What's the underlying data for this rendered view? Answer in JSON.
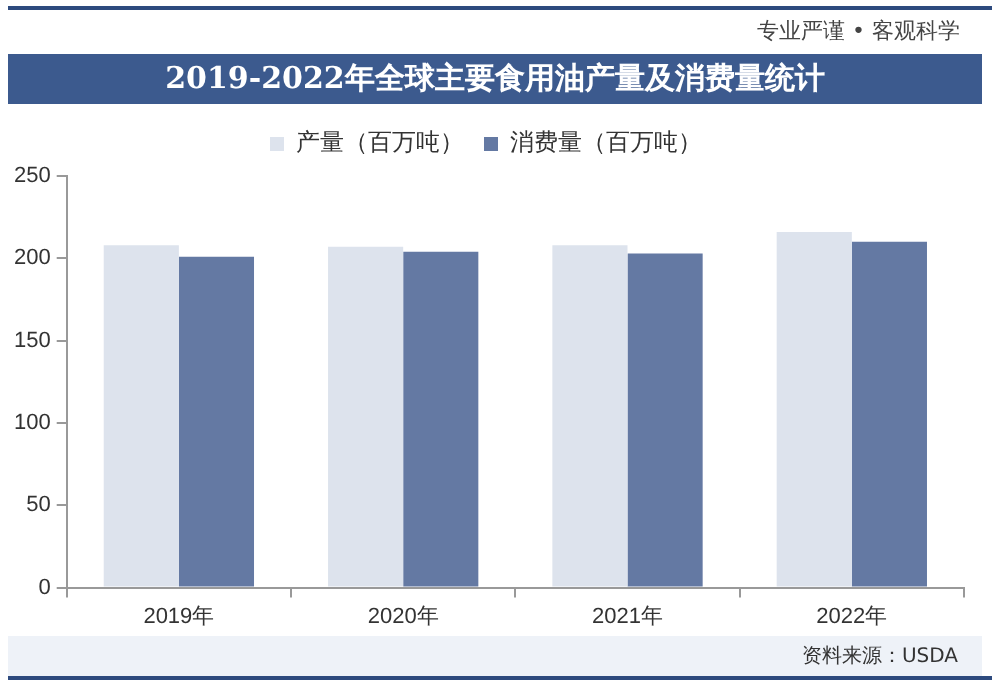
{
  "chart_data": {
    "type": "bar",
    "title": "2019-2022年全球主要食用油产量及消费量统计",
    "subtitle": "专业严谨 • 客观科学",
    "categories": [
      "2019年",
      "2020年",
      "2021年",
      "2022年"
    ],
    "series": [
      {
        "name": "产量（百万吨）",
        "color": "#dde3ed",
        "values": [
          208,
          207,
          208,
          216
        ]
      },
      {
        "name": "消费量（百万吨）",
        "color": "#6479a3",
        "values": [
          201,
          204,
          203,
          210
        ]
      }
    ],
    "ylim": [
      0,
      250
    ],
    "yticks": [
      0,
      50,
      100,
      150,
      200,
      250
    ],
    "grid": false,
    "legend": "top",
    "annotations": [
      "资料来源：USDA"
    ]
  }
}
